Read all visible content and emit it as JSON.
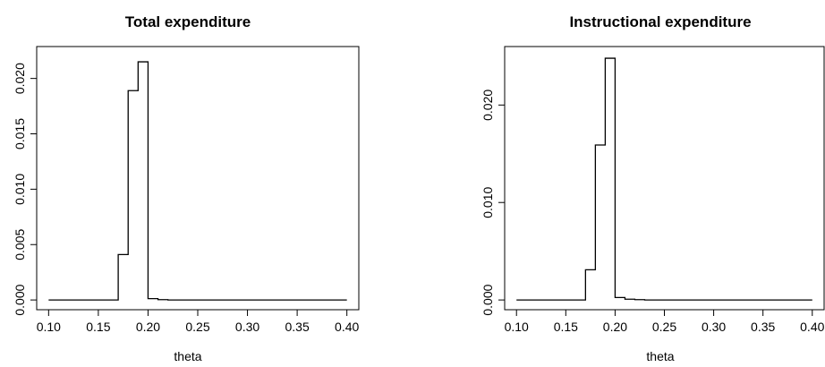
{
  "chart_data": [
    {
      "type": "line",
      "title": "Total expenditure",
      "xlabel": "theta",
      "ylabel": "",
      "xlim": [
        0.1,
        0.4
      ],
      "ylim": [
        0.0,
        0.022
      ],
      "grid": false,
      "xticks": [
        0.1,
        0.15,
        0.2,
        0.25,
        0.3,
        0.35,
        0.4
      ],
      "xtick_labels": [
        "0.10",
        "0.15",
        "0.20",
        "0.25",
        "0.30",
        "0.35",
        "0.40"
      ],
      "yticks": [
        0.0,
        0.005,
        0.01,
        0.015,
        0.02
      ],
      "ytick_labels": [
        "0.000",
        "0.005",
        "0.010",
        "0.015",
        "0.020"
      ],
      "step": true,
      "x": [
        0.1,
        0.11,
        0.12,
        0.13,
        0.14,
        0.15,
        0.16,
        0.17,
        0.18,
        0.19,
        0.2,
        0.21,
        0.22,
        0.23,
        0.24,
        0.25,
        0.26,
        0.27,
        0.28,
        0.29,
        0.3,
        0.31,
        0.32,
        0.33,
        0.34,
        0.35,
        0.36,
        0.37,
        0.38,
        0.39,
        0.4
      ],
      "y": [
        0,
        0,
        0,
        0,
        0,
        0,
        0,
        0.0041,
        0.0189,
        0.0215,
        0.00012,
        3e-05,
        0,
        0,
        0,
        0,
        0,
        0,
        0,
        0,
        0,
        0,
        0,
        0,
        0,
        0,
        0,
        0,
        0,
        0,
        0
      ]
    },
    {
      "type": "line",
      "title": "Instructional expenditure",
      "xlabel": "theta",
      "ylabel": "",
      "xlim": [
        0.1,
        0.4
      ],
      "ylim": [
        0.0,
        0.025
      ],
      "grid": false,
      "xticks": [
        0.1,
        0.15,
        0.2,
        0.25,
        0.3,
        0.35,
        0.4
      ],
      "xtick_labels": [
        "0.10",
        "0.15",
        "0.20",
        "0.25",
        "0.30",
        "0.35",
        "0.40"
      ],
      "yticks": [
        0.0,
        0.01,
        0.02
      ],
      "ytick_labels": [
        "0.000",
        "0.010",
        "0.020"
      ],
      "step": true,
      "x": [
        0.1,
        0.11,
        0.12,
        0.13,
        0.14,
        0.15,
        0.16,
        0.17,
        0.18,
        0.19,
        0.2,
        0.21,
        0.22,
        0.23,
        0.24,
        0.25,
        0.26,
        0.27,
        0.28,
        0.29,
        0.3,
        0.31,
        0.32,
        0.33,
        0.34,
        0.35,
        0.36,
        0.37,
        0.38,
        0.39,
        0.4
      ],
      "y": [
        0,
        0,
        0,
        0,
        0,
        0,
        0,
        0.0031,
        0.0159,
        0.0248,
        0.00025,
        8e-05,
        3e-05,
        0,
        0,
        0,
        0,
        0,
        0,
        0,
        0,
        0,
        0,
        0,
        0,
        0,
        0,
        0,
        0,
        0,
        0
      ]
    }
  ]
}
